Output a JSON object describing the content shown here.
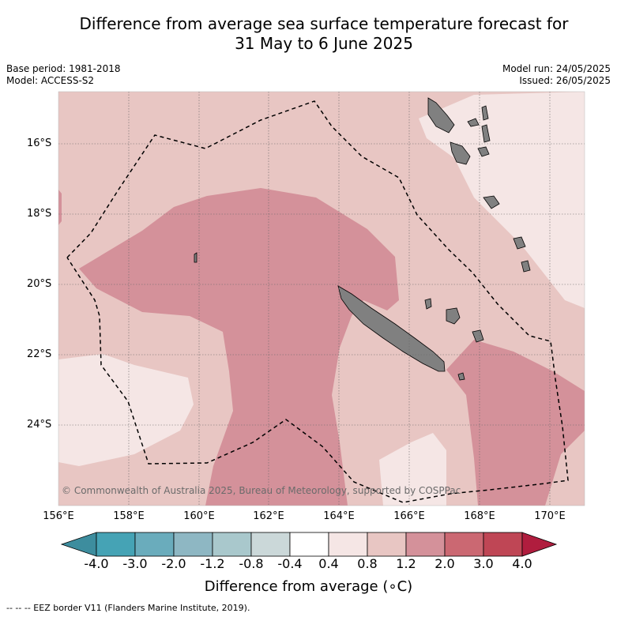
{
  "title_line1": "Difference from average sea surface temperature forecast for",
  "title_line2": "31 May to 6 June 2025",
  "meta_left": [
    "Base period: 1981-2018",
    "Model: ACCESS-S2"
  ],
  "meta_right": [
    "Model run: 24/05/2025",
    "Issued: 26/05/2025"
  ],
  "map": {
    "lon_ticks": [
      "156°E",
      "158°E",
      "160°E",
      "162°E",
      "164°E",
      "166°E",
      "168°E",
      "170°E"
    ],
    "lat_ticks": [
      "16°S",
      "18°S",
      "20°S",
      "22°S",
      "24°S"
    ],
    "copyright": "© Commonwealth of Australia 2025, Bureau of Meteorology, supported by COSPPac",
    "colors": {
      "land": "#808080",
      "anomaly_0_4_0_8": "#f5e6e5",
      "anomaly_0_8_1_2": "#e8c6c3",
      "anomaly_1_2_2_0": "#d4919a"
    }
  },
  "colorbar": {
    "ticks": [
      "-4.0",
      "-3.0",
      "-2.0",
      "-1.2",
      "-0.8",
      "-0.4",
      "0.4",
      "0.8",
      "1.2",
      "2.0",
      "3.0",
      "4.0"
    ],
    "colors": [
      "#3d8d9e",
      "#45a3b5",
      "#6aacbc",
      "#8eb7c3",
      "#a9c8cc",
      "#cbd8d9",
      "#ffffff",
      "#f5e6e5",
      "#e8c6c3",
      "#d4919a",
      "#cb6872",
      "#bf4655",
      "#b01d3e"
    ],
    "label": "Difference from average (∘C)"
  },
  "footnote": "--  --  -- EEZ border V11 (Flanders Marine Institute, 2019)."
}
